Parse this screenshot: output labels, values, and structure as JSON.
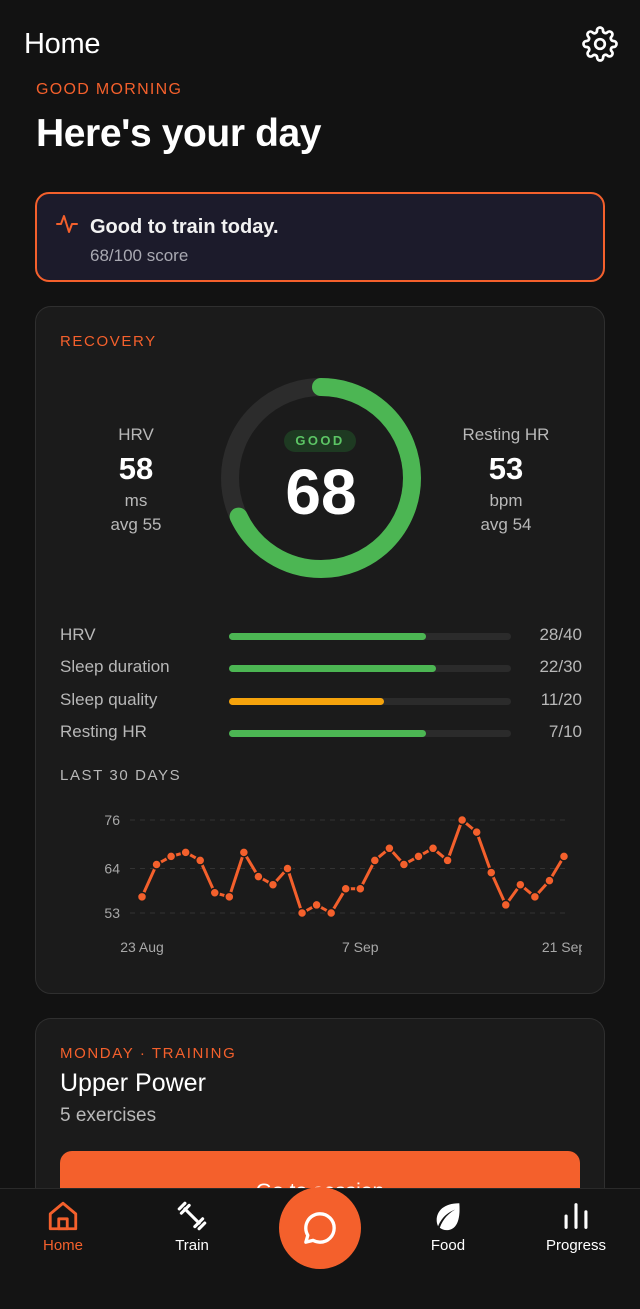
{
  "header": {
    "title": "Home"
  },
  "greeting": "GOOD MORNING",
  "page_title": "Here's your day",
  "banner": {
    "title": "Good to train today.",
    "subtitle": "68/100 score"
  },
  "recovery": {
    "label": "RECOVERY",
    "hrv": {
      "label": "HRV",
      "value": "58",
      "unit": "ms",
      "avg": "avg 55"
    },
    "resting_hr": {
      "label": "Resting HR",
      "value": "53",
      "unit": "bpm",
      "avg": "avg 54"
    },
    "ring": {
      "status": "GOOD",
      "score": "68",
      "progress": 0.68,
      "color": "#4cb653"
    },
    "breakdown": [
      {
        "label": "HRV",
        "score": "28/40",
        "fraction": 0.7,
        "color": "#4cb653"
      },
      {
        "label": "Sleep duration",
        "score": "22/30",
        "fraction": 0.733,
        "color": "#4cb653"
      },
      {
        "label": "Sleep quality",
        "score": "11/20",
        "fraction": 0.55,
        "color": "#f5a30c"
      },
      {
        "label": "Resting HR",
        "score": "7/10",
        "fraction": 0.7,
        "color": "#4cb653"
      }
    ],
    "trend_label": "LAST 30 DAYS"
  },
  "chart_data": {
    "type": "line",
    "title": "",
    "xlabel": "",
    "ylabel": "",
    "ylim": [
      53,
      76
    ],
    "y_ticks": [
      "76",
      "64",
      "53"
    ],
    "x_ticks": [
      {
        "day": 1,
        "label": "23 Aug"
      },
      {
        "day": 16,
        "label": "7 Sep"
      },
      {
        "day": 30,
        "label": "21 Sep"
      }
    ],
    "x": [
      "23 Aug",
      "24 Aug",
      "25 Aug",
      "26 Aug",
      "27 Aug",
      "28 Aug",
      "29 Aug",
      "30 Aug",
      "31 Aug",
      "1 Sep",
      "2 Sep",
      "3 Sep",
      "4 Sep",
      "5 Sep",
      "6 Sep",
      "7 Sep",
      "8 Sep",
      "9 Sep",
      "10 Sep",
      "11 Sep",
      "12 Sep",
      "13 Sep",
      "14 Sep",
      "15 Sep",
      "16 Sep",
      "17 Sep",
      "18 Sep",
      "19 Sep",
      "20 Sep",
      "21 Sep"
    ],
    "series": [
      {
        "values": [
          57,
          65,
          67,
          68,
          66,
          58,
          57,
          68,
          62,
          60,
          64,
          53,
          55,
          53,
          59,
          59,
          66,
          69,
          65,
          67,
          69,
          66,
          76,
          73,
          63,
          55,
          60,
          57,
          61,
          67
        ],
        "color": "#f4602c"
      }
    ],
    "grid": true,
    "legend": "none"
  },
  "training": {
    "label": "MONDAY · TRAINING",
    "title": "Upper Power",
    "subtitle": "5 exercises",
    "button": "Go to session"
  },
  "tabs": [
    {
      "label": "Home",
      "icon": "home-icon"
    },
    {
      "label": "Train",
      "icon": "dumbbell-icon"
    },
    {
      "label": "Food",
      "icon": "leaf-icon"
    },
    {
      "label": "Progress",
      "icon": "bar-chart-icon"
    }
  ],
  "chat_icon": "chat-bubble-icon"
}
